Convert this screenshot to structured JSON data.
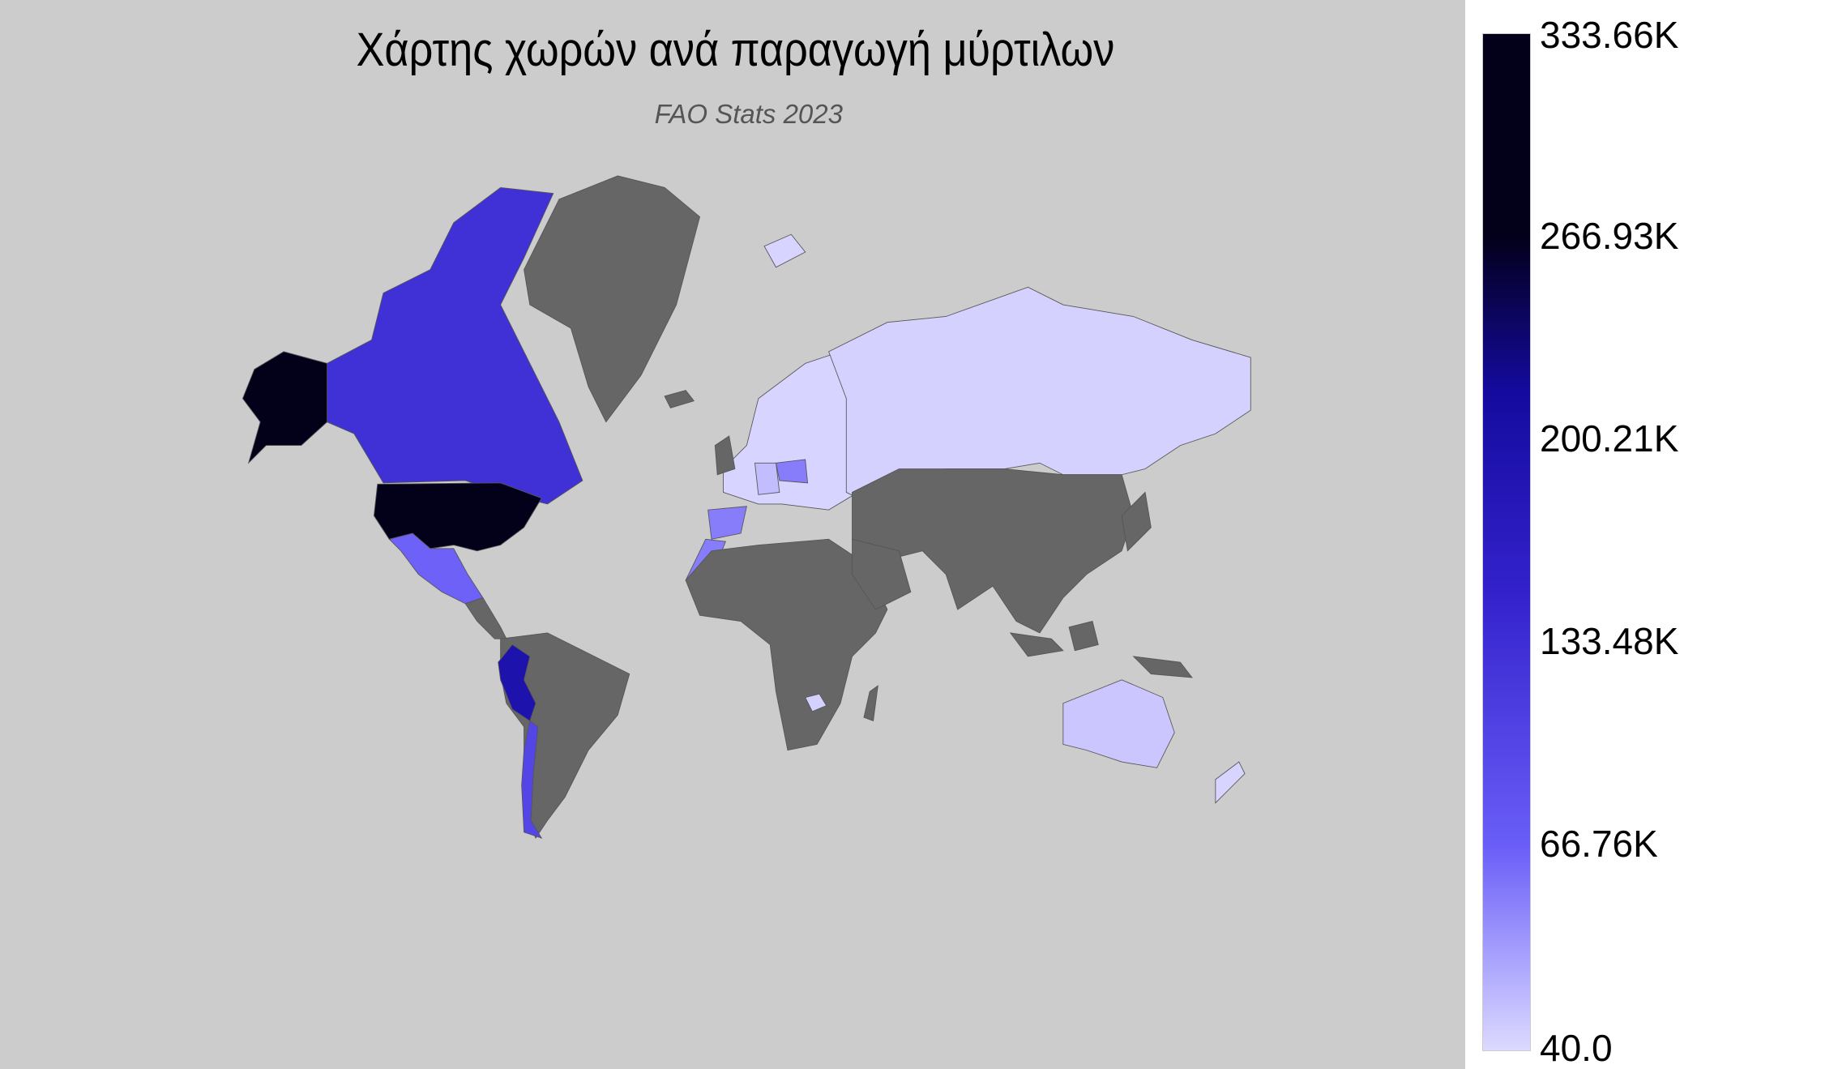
{
  "chart_data": {
    "type": "choropleth",
    "title": "Χάρτης χωρών ανά παραγωγή μύρτιλων",
    "subtitle": "FAO Stats 2023",
    "projection": "mercator",
    "no_data_color": "#666666",
    "background_color": "#cccccc",
    "colorbar": {
      "min": 40.0,
      "max": 333660,
      "tick_labels": [
        "333.66K",
        "266.93K",
        "200.21K",
        "133.48K",
        "66.76K",
        "40.0"
      ],
      "colorscale": [
        [
          0,
          "#dcdaff"
        ],
        [
          0.2,
          "#6a5ef8"
        ],
        [
          0.45,
          "#3322cc"
        ],
        [
          0.65,
          "#140a9e"
        ],
        [
          0.8,
          "#03001a"
        ],
        [
          1,
          "#03001a"
        ]
      ]
    },
    "countries": [
      {
        "name": "United States",
        "value": 333660
      },
      {
        "name": "Peru",
        "value": 195000
      },
      {
        "name": "Canada",
        "value": 130000
      },
      {
        "name": "Chile",
        "value": 100000
      },
      {
        "name": "Mexico",
        "value": 65000
      },
      {
        "name": "Spain",
        "value": 50000
      },
      {
        "name": "Morocco",
        "value": 50000
      },
      {
        "name": "Poland",
        "value": 50000
      },
      {
        "name": "Germany",
        "value": 15000
      },
      {
        "name": "Russia",
        "value": 5000
      },
      {
        "name": "Europe (other)",
        "value": 3000
      },
      {
        "name": "Australia",
        "value": 10000
      },
      {
        "name": "Zimbabwe",
        "value": 5000
      },
      {
        "name": "New Zealand",
        "value": 3000
      }
    ]
  }
}
